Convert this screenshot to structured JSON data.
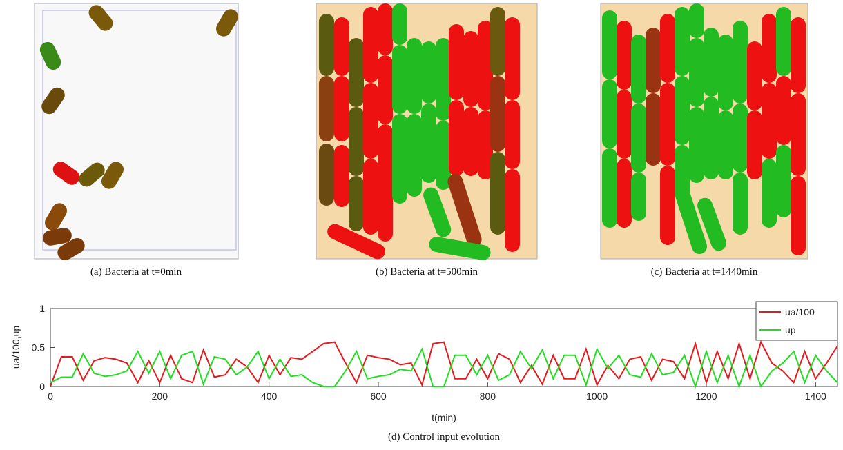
{
  "panels": [
    {
      "caption": "(a) Bacteria at t=0min"
    },
    {
      "caption": "(b) Bacteria at t=500min"
    },
    {
      "caption": "(c) Bacteria at t=1440min"
    }
  ],
  "chart_data": {
    "type": "line",
    "caption": "(d) Control input evolution",
    "xlabel": "t(min)",
    "ylabel": "ua/100,up",
    "x": [
      0,
      20,
      40,
      60,
      80,
      100,
      120,
      140,
      160,
      180,
      200,
      220,
      240,
      260,
      280,
      300,
      320,
      340,
      360,
      380,
      400,
      420,
      440,
      460,
      480,
      500,
      520,
      540,
      560,
      580,
      600,
      620,
      640,
      660,
      680,
      700,
      720,
      740,
      760,
      780,
      800,
      820,
      840,
      860,
      880,
      900,
      920,
      940,
      960,
      980,
      1000,
      1020,
      1040,
      1060,
      1080,
      1100,
      1120,
      1140,
      1160,
      1180,
      1200,
      1220,
      1240,
      1260,
      1280,
      1300,
      1320,
      1340,
      1360,
      1380,
      1400,
      1420,
      1440
    ],
    "series": [
      {
        "name": "ua/100",
        "color": "#e41a1c",
        "values": [
          0,
          0.38,
          0.38,
          0.08,
          0.33,
          0.37,
          0.35,
          0.3,
          0.05,
          0.33,
          0.05,
          0.4,
          0.1,
          0.05,
          0.47,
          0.12,
          0.15,
          0.35,
          0.25,
          0.05,
          0.4,
          0.15,
          0.37,
          0.35,
          0.45,
          0.55,
          0.57,
          0.3,
          0.05,
          0.4,
          0.37,
          0.35,
          0.28,
          0.3,
          0.02,
          0.55,
          0.57,
          0.1,
          0.1,
          0.35,
          0.1,
          0.42,
          0.35,
          0.05,
          0.27,
          0.03,
          0.4,
          0.1,
          0.1,
          0.48,
          0.02,
          0.27,
          0.1,
          0.35,
          0.38,
          0.08,
          0.35,
          0.32,
          0.1,
          0.55,
          0.05,
          0.45,
          0.1,
          0.55,
          0.1,
          0.57,
          0.3,
          0.2,
          0.05,
          0.45,
          0.1,
          0.3,
          0.52
        ]
      },
      {
        "name": "up",
        "color": "#22dd22",
        "values": [
          0.05,
          0.12,
          0.12,
          0.42,
          0.17,
          0.13,
          0.15,
          0.2,
          0.45,
          0.17,
          0.45,
          0.1,
          0.4,
          0.45,
          0.03,
          0.38,
          0.35,
          0.15,
          0.25,
          0.45,
          0.1,
          0.35,
          0.13,
          0.15,
          0.05,
          0,
          0,
          0.2,
          0.45,
          0.1,
          0.13,
          0.15,
          0.22,
          0.2,
          0.48,
          0,
          0,
          0.4,
          0.4,
          0.15,
          0.4,
          0.08,
          0.15,
          0.45,
          0.23,
          0.47,
          0.1,
          0.4,
          0.4,
          0.02,
          0.48,
          0.23,
          0.4,
          0.15,
          0.12,
          0.42,
          0.15,
          0.18,
          0.4,
          0,
          0.45,
          0.05,
          0.4,
          0,
          0.4,
          0,
          0.2,
          0.3,
          0.45,
          0.05,
          0.4,
          0.2,
          0.05
        ]
      }
    ],
    "xlim": [
      0,
      1440
    ],
    "ylim": [
      0,
      1
    ],
    "xticks": [
      0,
      200,
      400,
      600,
      800,
      1000,
      1200,
      1400
    ],
    "yticks": [
      0,
      0.5,
      1
    ],
    "legend": "upper-right"
  }
}
